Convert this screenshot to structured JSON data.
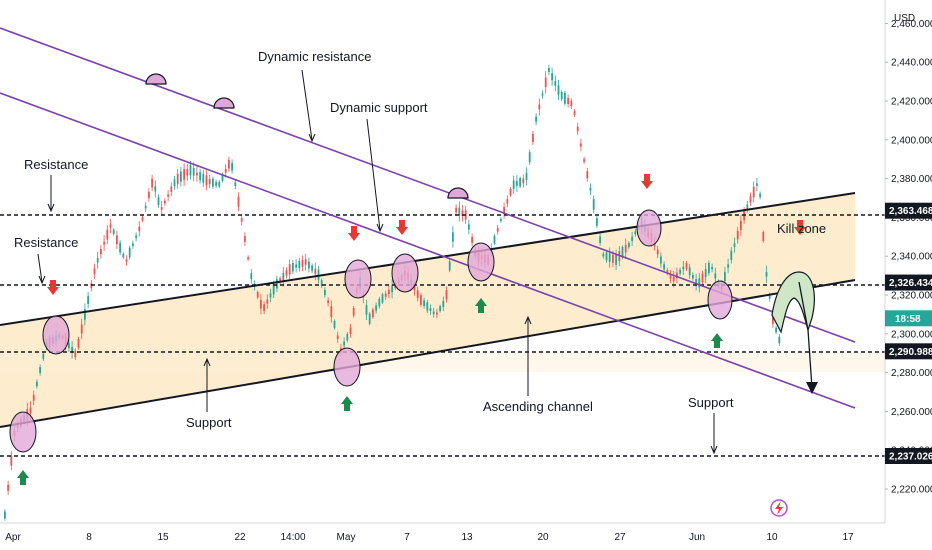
{
  "chart_data": {
    "type": "candlestick",
    "currency": "USD",
    "x_ticks": [
      "Apr",
      "8",
      "15",
      "22",
      "14:00",
      "May",
      "7",
      "13",
      "20",
      "27",
      "Jun",
      "10",
      "17"
    ],
    "y_ticks": [
      "2,220.000",
      "2,240.000",
      "2,260.000",
      "2,280.000",
      "2,300.000",
      "2,320.000",
      "2,340.000",
      "2,360.000",
      "2,380.000",
      "2,400.000",
      "2,420.000",
      "2,440.000",
      "2,460.000"
    ],
    "ylim": [
      2200,
      2470
    ],
    "price_tags": [
      {
        "label": "2,363.468",
        "value": 2363.468,
        "style": "dark"
      },
      {
        "label": "2,326.434",
        "value": 2326.434,
        "style": "dark"
      },
      {
        "label": "18:58",
        "value": 2308,
        "style": "teal"
      },
      {
        "label": "2,290.988",
        "value": 2290.988,
        "style": "dark"
      },
      {
        "label": "2,237.026",
        "value": 2237.026,
        "style": "dark"
      }
    ],
    "horizontal_levels": [
      2363.468,
      2326.434,
      2290.988,
      2237.026
    ],
    "annotations": {
      "dynamic_resistance": "Dynamic resistance",
      "dynamic_support": "Dynamic support",
      "resistance_1": "Resistance",
      "resistance_2": "Resistance",
      "support_1": "Support",
      "support_2": "Support",
      "ascending_channel": "Ascending channel",
      "kill_zone": "Kill zone"
    },
    "colors": {
      "up": "#26a69a",
      "down": "#ef5350",
      "channel_fill": "#fde9c4",
      "trendline": "#7b3fb0",
      "channel_line": "#131722",
      "circle_fill": "#e2a7d9",
      "arrow_up": "#1b8a4a",
      "arrow_down": "#e53935",
      "kill_fill": "#cfe6c7"
    }
  }
}
